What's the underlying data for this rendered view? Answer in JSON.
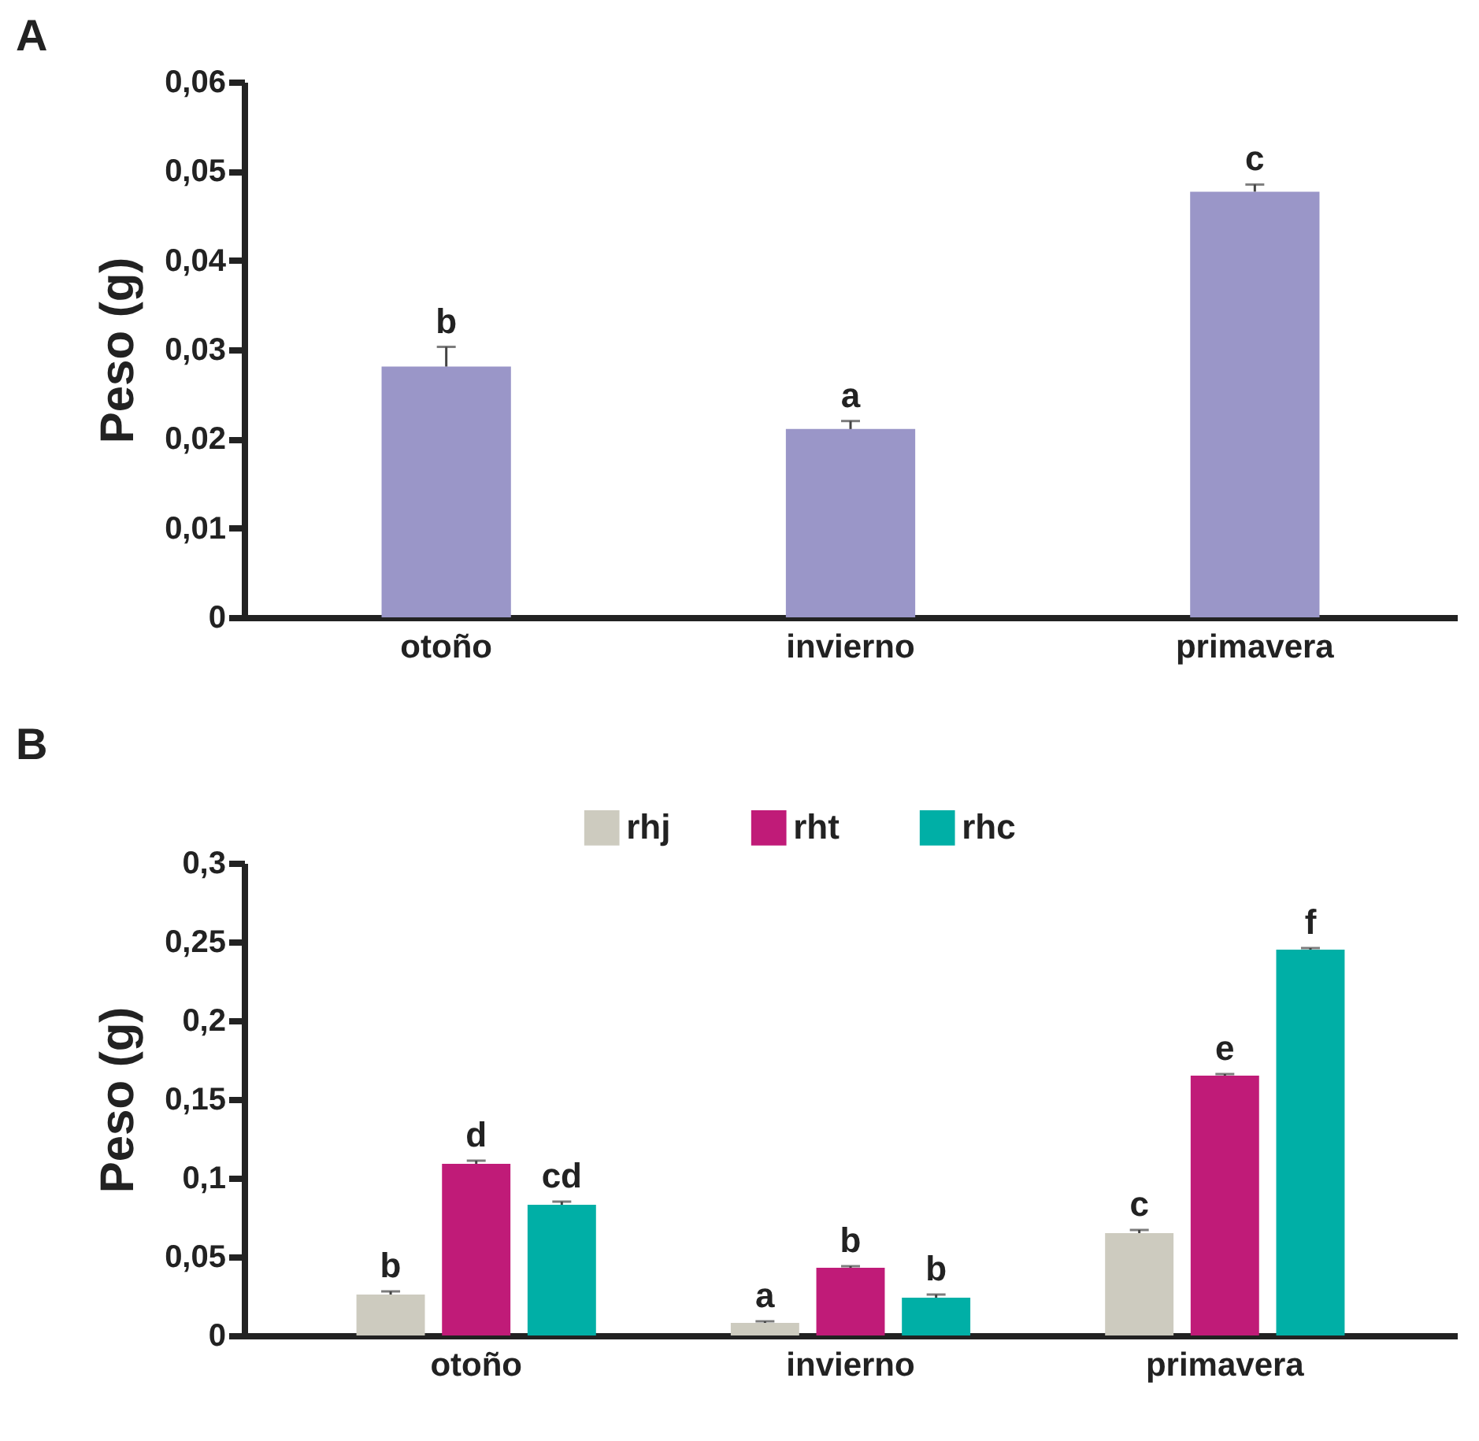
{
  "chart_data": [
    {
      "type": "bar",
      "title": "A",
      "ylabel": "Peso (g)",
      "categories": [
        "otoño",
        "invierno",
        "primavera"
      ],
      "series": [
        {
          "color": "#9a96c8",
          "values": [
            0.0281,
            0.0211,
            0.0477
          ],
          "errors": [
            0.0022,
            0.0009,
            0.0008
          ],
          "value_labels": [
            "b",
            "a",
            "c"
          ]
        }
      ],
      "ylim": [
        0,
        0.06
      ],
      "yticks": [
        {
          "value": 0,
          "label": "0"
        },
        {
          "value": 0.01,
          "label": "0,01"
        },
        {
          "value": 0.02,
          "label": "0,02"
        },
        {
          "value": 0.03,
          "label": "0,03"
        },
        {
          "value": 0.04,
          "label": "0,04"
        },
        {
          "value": 0.05,
          "label": "0,05"
        },
        {
          "value": 0.06,
          "label": "0,06"
        }
      ],
      "grid": false,
      "legend": false
    },
    {
      "type": "bar",
      "title": "B",
      "ylabel": "Peso (g)",
      "categories": [
        "otoño",
        "invierno",
        "primavera"
      ],
      "series": [
        {
          "name": "rhj",
          "color": "#cdcbbf",
          "values": [
            0.026,
            0.008,
            0.065
          ],
          "errors": [
            0.002,
            0.001,
            0.002
          ],
          "value_labels": [
            "b",
            "a",
            "c"
          ]
        },
        {
          "name": "rht",
          "color": "#c01b78",
          "values": [
            0.109,
            0.043,
            0.165
          ],
          "errors": [
            0.002,
            0.001,
            0.001
          ],
          "value_labels": [
            "d",
            "b",
            "e"
          ]
        },
        {
          "name": "rhc",
          "color": "#00afa6",
          "values": [
            0.083,
            0.024,
            0.245
          ],
          "errors": [
            0.002,
            0.002,
            0.001
          ],
          "value_labels": [
            "cd",
            "b",
            "f"
          ]
        }
      ],
      "ylim": [
        0,
        0.3
      ],
      "yticks": [
        {
          "value": 0,
          "label": "0"
        },
        {
          "value": 0.05,
          "label": "0,05"
        },
        {
          "value": 0.1,
          "label": "0,1"
        },
        {
          "value": 0.15,
          "label": "0,15"
        },
        {
          "value": 0.2,
          "label": "0,2"
        },
        {
          "value": 0.25,
          "label": "0,25"
        },
        {
          "value": 0.3,
          "label": "0,3"
        }
      ],
      "grid": false,
      "legend": "top"
    }
  ]
}
